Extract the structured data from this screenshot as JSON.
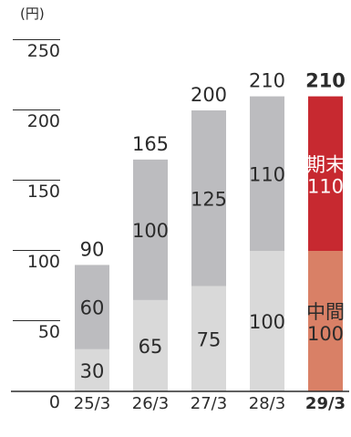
{
  "chart_data": {
    "type": "bar",
    "stacked": true,
    "unit_label": "(円)",
    "categories": [
      "25/3",
      "26/3",
      "27/3",
      "28/3",
      "29/3"
    ],
    "highlight_category": "29/3",
    "series": [
      {
        "values": [
          30,
          65,
          75,
          100,
          100
        ],
        "color": "#d9d9d9",
        "highlight_color": "#d98066",
        "highlight_label": "中間"
      },
      {
        "values": [
          60,
          100,
          125,
          110,
          110
        ],
        "color": "#bcbcbf",
        "highlight_color": "#c72930",
        "highlight_label": "期末"
      }
    ],
    "totals": [
      90,
      165,
      200,
      210,
      210
    ],
    "y_ticks": [
      0,
      50,
      100,
      150,
      200,
      250
    ],
    "ylim": [
      0,
      250
    ],
    "grid": false
  }
}
